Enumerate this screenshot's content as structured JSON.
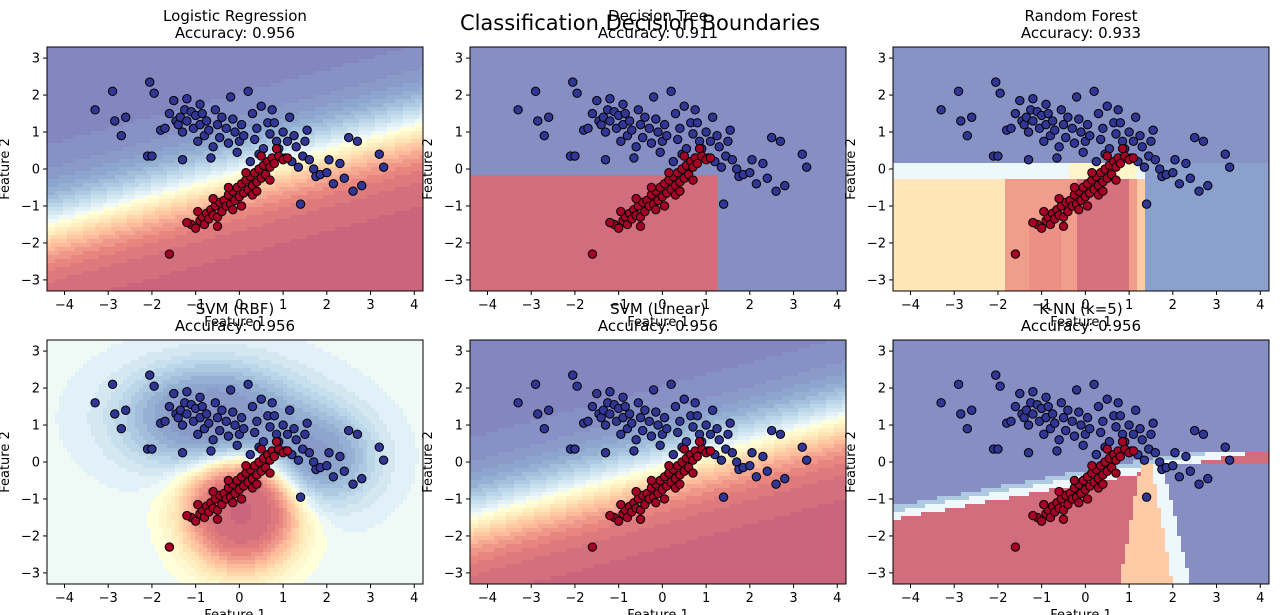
{
  "figure": {
    "suptitle": "Classification Decision Boundaries",
    "colors": {
      "class0": "#313695",
      "class1": "#a50026",
      "edge": "#000000"
    }
  },
  "chart_data": [
    {
      "type": "scatter",
      "title": "Logistic Regression",
      "subtitle": "Accuracy: 0.956",
      "xlabel": "Feature 1",
      "ylabel": "Feature 2",
      "xlim": [
        -4.4,
        4.2
      ],
      "ylim": [
        -3.3,
        3.3
      ],
      "xticks": [
        -4,
        -3,
        -2,
        -1,
        0,
        1,
        2,
        3,
        4
      ],
      "yticks": [
        -3,
        -2,
        -1,
        0,
        1,
        2,
        3
      ],
      "boundary": "logistic",
      "colormap": "RdYlBu"
    },
    {
      "type": "scatter",
      "title": "Decision Tree",
      "subtitle": "Accuracy: 0.911",
      "xlabel": "Feature 1",
      "ylabel": "Feature 2",
      "xlim": [
        -4.4,
        4.2
      ],
      "ylim": [
        -3.3,
        3.3
      ],
      "xticks": [
        -4,
        -3,
        -2,
        -1,
        0,
        1,
        2,
        3,
        4
      ],
      "yticks": [
        -3,
        -2,
        -1,
        0,
        1,
        2,
        3
      ],
      "boundary": "tree",
      "colormap": "RdYlBu"
    },
    {
      "type": "scatter",
      "title": "Random Forest",
      "subtitle": "Accuracy: 0.933",
      "xlabel": "Feature 1",
      "ylabel": "Feature 2",
      "xlim": [
        -4.4,
        4.2
      ],
      "ylim": [
        -3.3,
        3.3
      ],
      "xticks": [
        -4,
        -3,
        -2,
        -1,
        0,
        1,
        2,
        3,
        4
      ],
      "yticks": [
        -3,
        -2,
        -1,
        0,
        1,
        2,
        3
      ],
      "boundary": "forest",
      "colormap": "RdYlBu"
    },
    {
      "type": "scatter",
      "title": "SVM (RBF)",
      "subtitle": "Accuracy: 0.956",
      "xlabel": "Feature 1",
      "ylabel": "Feature 2",
      "xlim": [
        -4.4,
        4.2
      ],
      "ylim": [
        -3.3,
        3.3
      ],
      "xticks": [
        -4,
        -3,
        -2,
        -1,
        0,
        1,
        2,
        3,
        4
      ],
      "yticks": [
        -3,
        -2,
        -1,
        0,
        1,
        2,
        3
      ],
      "boundary": "rbf",
      "colormap": "RdYlBu"
    },
    {
      "type": "scatter",
      "title": "SVM (Linear)",
      "subtitle": "Accuracy: 0.956",
      "xlabel": "Feature 1",
      "ylabel": "Feature 2",
      "xlim": [
        -4.4,
        4.2
      ],
      "ylim": [
        -3.3,
        3.3
      ],
      "xticks": [
        -4,
        -3,
        -2,
        -1,
        0,
        1,
        2,
        3,
        4
      ],
      "yticks": [
        -3,
        -2,
        -1,
        0,
        1,
        2,
        3
      ],
      "boundary": "linear",
      "colormap": "RdYlBu"
    },
    {
      "type": "scatter",
      "title": "K-NN (k=5)",
      "subtitle": "Accuracy: 0.956",
      "xlabel": "Feature 1",
      "ylabel": "Feature 2",
      "xlim": [
        -4.4,
        4.2
      ],
      "ylim": [
        -3.3,
        3.3
      ],
      "xticks": [
        -4,
        -3,
        -2,
        -1,
        0,
        1,
        2,
        3,
        4
      ],
      "yticks": [
        -3,
        -2,
        -1,
        0,
        1,
        2,
        3
      ],
      "boundary": "knn",
      "colormap": "RdYlBu"
    }
  ],
  "points": {
    "class0": [
      [
        -3.3,
        1.6
      ],
      [
        -2.9,
        2.1
      ],
      [
        -2.85,
        1.3
      ],
      [
        -2.6,
        1.4
      ],
      [
        -2.7,
        0.9
      ],
      [
        -2.05,
        2.35
      ],
      [
        -1.95,
        2.05
      ],
      [
        -2.1,
        0.35
      ],
      [
        -2.0,
        0.35
      ],
      [
        -1.8,
        1.05
      ],
      [
        -1.7,
        1.1
      ],
      [
        -1.6,
        1.5
      ],
      [
        -1.5,
        1.85
      ],
      [
        -1.45,
        1.3
      ],
      [
        -1.4,
        1.2
      ],
      [
        -1.35,
        1.4
      ],
      [
        -1.3,
        1.0
      ],
      [
        -1.25,
        1.6
      ],
      [
        -1.2,
        1.9
      ],
      [
        -1.2,
        1.3
      ],
      [
        -1.1,
        1.55
      ],
      [
        -1.05,
        1.1
      ],
      [
        -1.0,
        1.45
      ],
      [
        -0.95,
        0.75
      ],
      [
        -0.9,
        1.2
      ],
      [
        -0.85,
        1.5
      ],
      [
        -0.8,
        0.9
      ],
      [
        -0.75,
        1.3
      ],
      [
        -0.7,
        1.05
      ],
      [
        -0.6,
        0.6
      ],
      [
        -0.55,
        1.6
      ],
      [
        -0.5,
        1.2
      ],
      [
        -0.45,
        0.85
      ],
      [
        -0.4,
        1.4
      ],
      [
        -0.3,
        1.1
      ],
      [
        -0.25,
        0.7
      ],
      [
        -0.2,
        1.95
      ],
      [
        -0.15,
        1.35
      ],
      [
        -0.1,
        1.0
      ],
      [
        0.0,
        0.75
      ],
      [
        0.05,
        1.2
      ],
      [
        0.1,
        0.9
      ],
      [
        0.2,
        2.1
      ],
      [
        0.3,
        1.5
      ],
      [
        0.35,
        0.8
      ],
      [
        0.4,
        1.1
      ],
      [
        0.45,
        0.4
      ],
      [
        0.5,
        1.7
      ],
      [
        0.55,
        0.55
      ],
      [
        0.65,
        1.25
      ],
      [
        0.7,
        0.95
      ],
      [
        0.75,
        1.6
      ],
      [
        0.8,
        1.25
      ],
      [
        0.85,
        0.75
      ],
      [
        0.9,
        0.55
      ],
      [
        1.0,
        1.0
      ],
      [
        1.05,
        0.3
      ],
      [
        1.1,
        0.75
      ],
      [
        1.15,
        1.4
      ],
      [
        1.2,
        0.2
      ],
      [
        1.25,
        0.9
      ],
      [
        1.3,
        0.6
      ],
      [
        1.35,
        0.05
      ],
      [
        1.45,
        0.35
      ],
      [
        1.5,
        0.75
      ],
      [
        1.55,
        1.05
      ],
      [
        1.6,
        0.25
      ],
      [
        1.7,
        0.0
      ],
      [
        1.75,
        -0.2
      ],
      [
        1.85,
        -0.15
      ],
      [
        2.0,
        -0.1
      ],
      [
        2.05,
        0.25
      ],
      [
        2.15,
        -0.4
      ],
      [
        2.3,
        0.15
      ],
      [
        2.4,
        -0.25
      ],
      [
        2.5,
        0.85
      ],
      [
        2.6,
        -0.6
      ],
      [
        2.7,
        0.75
      ],
      [
        2.8,
        -0.45
      ],
      [
        3.2,
        0.4
      ],
      [
        3.3,
        0.05
      ],
      [
        -1.3,
        0.25
      ],
      [
        -0.65,
        0.3
      ],
      [
        -0.05,
        0.45
      ],
      [
        0.25,
        0.2
      ],
      [
        1.4,
        -0.95
      ],
      [
        -0.9,
        1.75
      ],
      [
        0.6,
        0.1
      ]
    ],
    "class1": [
      [
        -1.6,
        -2.3
      ],
      [
        -1.1,
        -1.5
      ],
      [
        -1.0,
        -1.6
      ],
      [
        -0.9,
        -1.4
      ],
      [
        -0.85,
        -1.3
      ],
      [
        -0.8,
        -1.5
      ],
      [
        -0.75,
        -1.2
      ],
      [
        -0.7,
        -1.35
      ],
      [
        -0.65,
        -1.1
      ],
      [
        -0.6,
        -1.25
      ],
      [
        -0.55,
        -1.0
      ],
      [
        -0.5,
        -1.3
      ],
      [
        -0.45,
        -0.9
      ],
      [
        -0.4,
        -1.15
      ],
      [
        -0.35,
        -0.85
      ],
      [
        -0.3,
        -1.0
      ],
      [
        -0.25,
        -0.7
      ],
      [
        -0.2,
        -0.95
      ],
      [
        -0.15,
        -0.6
      ],
      [
        -0.1,
        -0.85
      ],
      [
        -0.05,
        -0.5
      ],
      [
        0.0,
        -0.75
      ],
      [
        0.05,
        -0.4
      ],
      [
        0.1,
        -0.65
      ],
      [
        0.15,
        -0.3
      ],
      [
        0.2,
        -0.55
      ],
      [
        0.25,
        -0.2
      ],
      [
        0.3,
        -0.45
      ],
      [
        0.35,
        -0.1
      ],
      [
        0.4,
        -0.35
      ],
      [
        0.45,
        0.0
      ],
      [
        0.5,
        -0.25
      ],
      [
        0.55,
        0.1
      ],
      [
        0.6,
        -0.15
      ],
      [
        0.65,
        0.2
      ],
      [
        0.7,
        0.05
      ],
      [
        0.75,
        0.3
      ],
      [
        0.8,
        0.15
      ],
      [
        0.9,
        0.35
      ],
      [
        1.0,
        0.25
      ],
      [
        1.1,
        0.3
      ],
      [
        0.85,
        0.55
      ],
      [
        -1.2,
        -1.45
      ],
      [
        -0.95,
        -1.15
      ],
      [
        -0.6,
        -0.8
      ],
      [
        -0.25,
        -0.5
      ],
      [
        0.15,
        -0.1
      ],
      [
        0.5,
        0.35
      ],
      [
        0.3,
        -0.7
      ],
      [
        -0.5,
        -1.55
      ],
      [
        -0.15,
        -1.1
      ],
      [
        0.05,
        -1.0
      ],
      [
        0.4,
        -0.6
      ],
      [
        0.7,
        -0.3
      ]
    ]
  }
}
